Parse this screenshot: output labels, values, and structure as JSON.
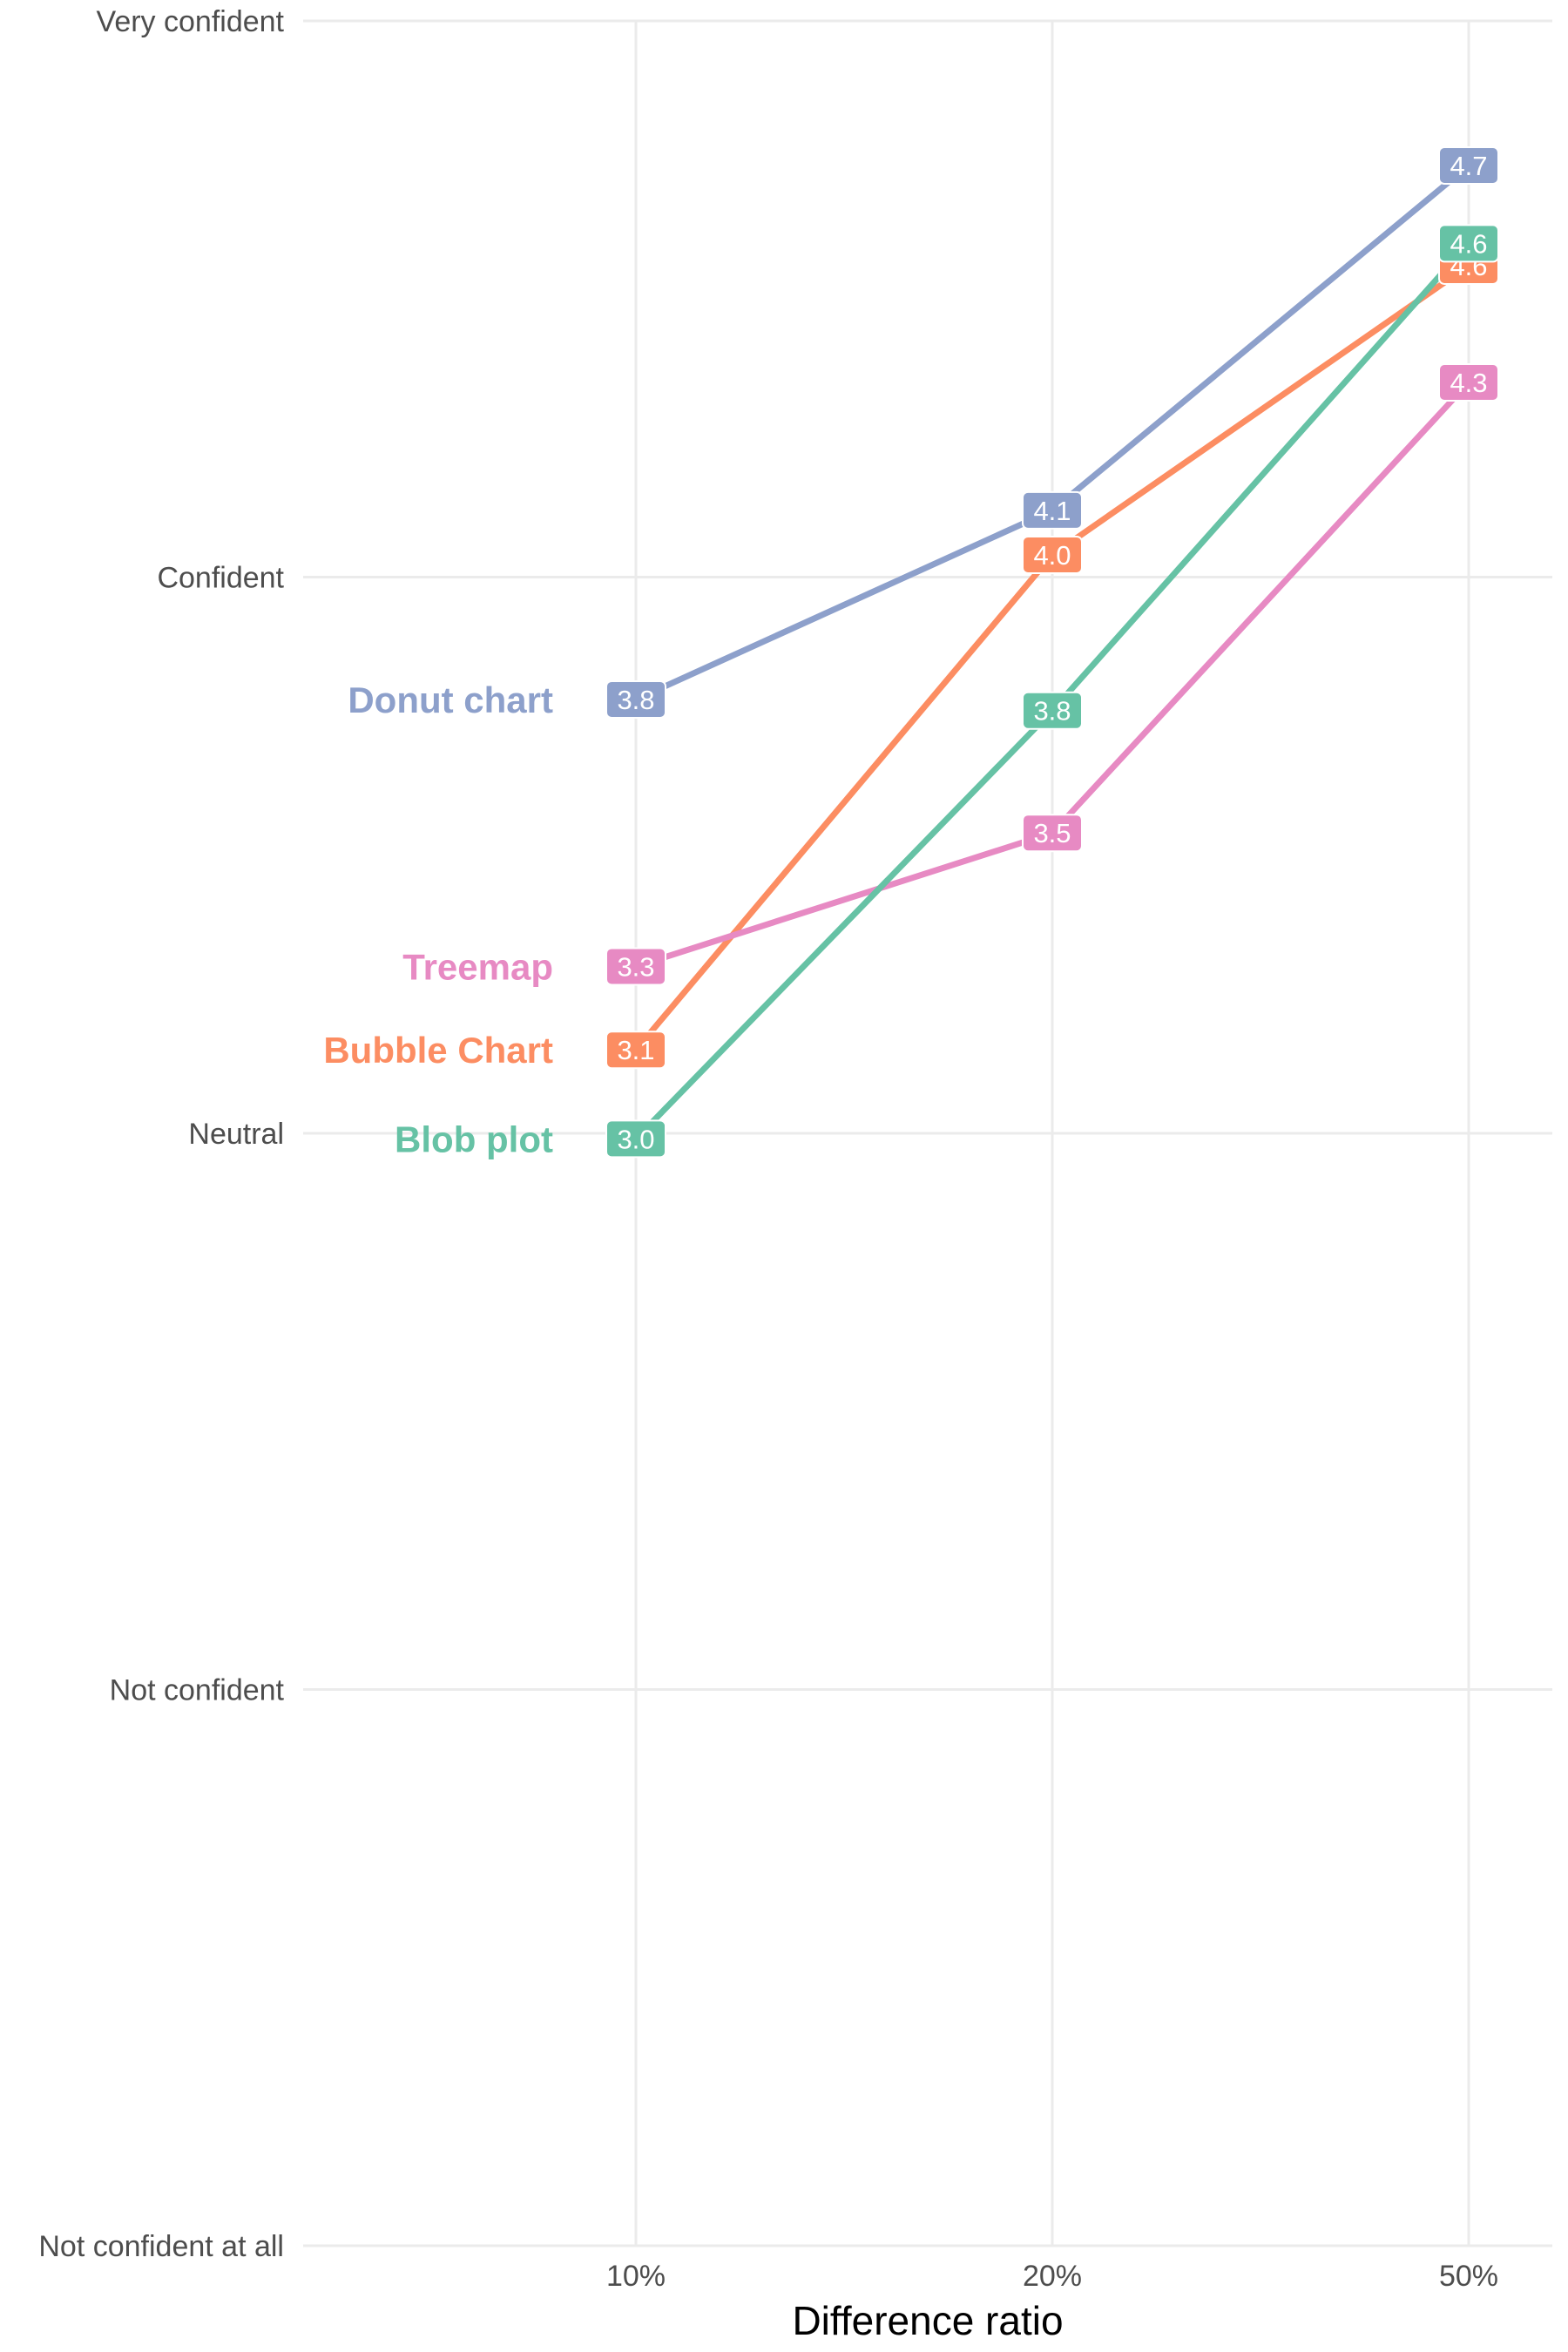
{
  "chart_data": {
    "type": "line",
    "xlabel": "Difference ratio",
    "ylabel": "",
    "categories": [
      "10%",
      "20%",
      "50%"
    ],
    "y_tick_labels": [
      "Not confident at all",
      "Not confident",
      "Neutral",
      "Confident",
      "Very confident"
    ],
    "y_tick_values": [
      1,
      2,
      3,
      4,
      5
    ],
    "ylim": [
      1,
      5
    ],
    "grid": true,
    "legend": "direct labels at left of lines",
    "series": [
      {
        "name": "Donut chart",
        "color": "#8DA0CB",
        "values": [
          3.78,
          4.12,
          4.74
        ],
        "labels": [
          "3.8",
          "4.1",
          "4.7"
        ]
      },
      {
        "name": "Bubble Chart",
        "color": "#FC8D62",
        "values": [
          3.15,
          4.04,
          4.56
        ],
        "labels": [
          "3.1",
          "4.0",
          "4.6"
        ]
      },
      {
        "name": "Treemap",
        "color": "#E78AC3",
        "values": [
          3.3,
          3.54,
          4.35
        ],
        "labels": [
          "3.3",
          "3.5",
          "4.3"
        ]
      },
      {
        "name": "Blob plot",
        "color": "#66C2A5",
        "values": [
          2.99,
          3.76,
          4.6
        ],
        "labels": [
          "3.0",
          "3.8",
          "4.6"
        ]
      }
    ]
  }
}
